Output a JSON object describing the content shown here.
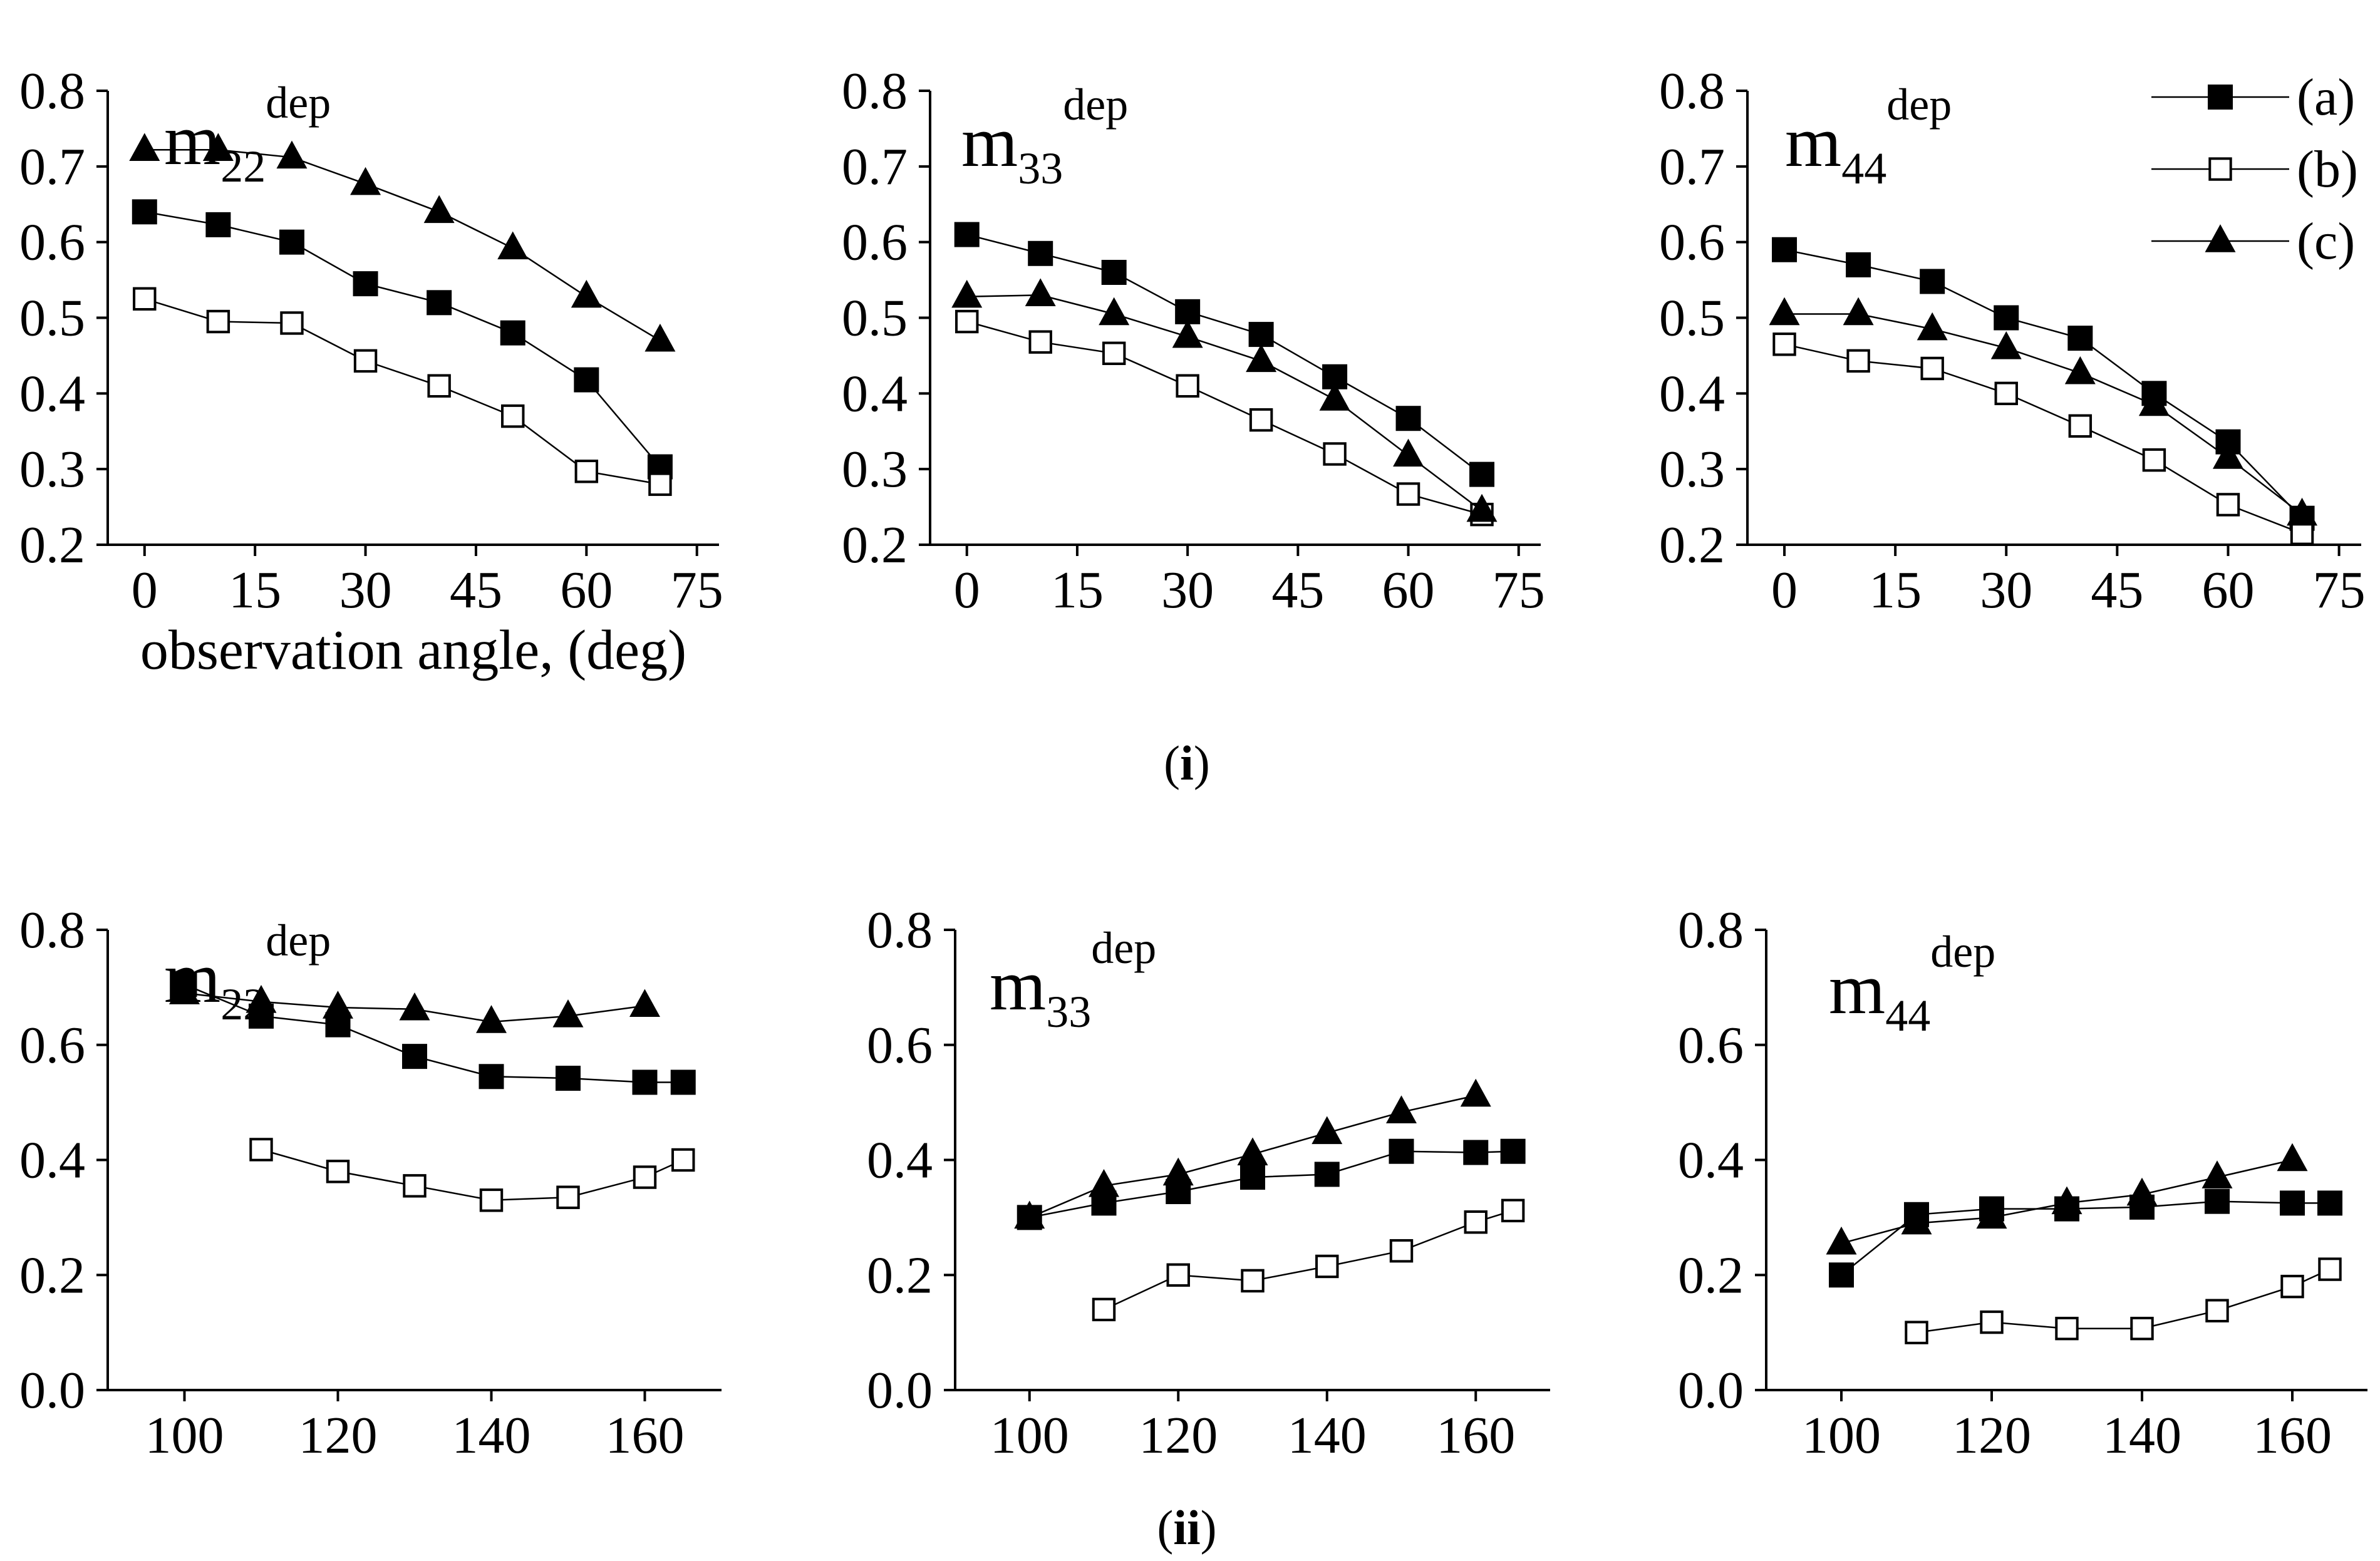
{
  "figure": {
    "captions": [
      {
        "pre": "(",
        "bold": "i",
        "post": ")"
      },
      {
        "pre": "(",
        "bold": "ii",
        "post": ")"
      }
    ]
  },
  "legend": {
    "entries": [
      {
        "label": "(a)",
        "series": "a"
      },
      {
        "label": "(b)",
        "series": "b"
      },
      {
        "label": "(c)",
        "series": "c"
      }
    ]
  },
  "chart_data": [
    {
      "type": "line",
      "panel": "(i)",
      "title": {
        "base": "m",
        "sub": "22",
        "sup": "dep"
      },
      "xlabel": "observation angle, (deg)",
      "ylabel": "",
      "xlim": [
        -5,
        78
      ],
      "ylim": [
        0.2,
        0.8
      ],
      "xticks": [
        0,
        15,
        30,
        45,
        60,
        75
      ],
      "yticks": [
        0.2,
        0.3,
        0.4,
        0.5,
        0.6,
        0.7,
        0.8
      ],
      "ytick_decimals": 1,
      "grid": false,
      "series": [
        {
          "name": "(a)",
          "marker": "filled-square",
          "x": [
            0,
            10,
            20,
            30,
            40,
            50,
            60,
            70
          ],
          "y": [
            0.64,
            0.623,
            0.6,
            0.545,
            0.52,
            0.48,
            0.418,
            0.303
          ]
        },
        {
          "name": "(b)",
          "marker": "open-square",
          "x": [
            0,
            10,
            20,
            30,
            40,
            50,
            60,
            70
          ],
          "y": [
            0.525,
            0.495,
            0.493,
            0.443,
            0.41,
            0.37,
            0.297,
            0.28
          ]
        },
        {
          "name": "(c)",
          "marker": "filled-triangle",
          "x": [
            0,
            10,
            20,
            30,
            40,
            50,
            60,
            70
          ],
          "y": [
            0.722,
            0.722,
            0.712,
            0.677,
            0.64,
            0.592,
            0.528,
            0.47
          ]
        }
      ]
    },
    {
      "type": "line",
      "panel": "(i)",
      "title": {
        "base": "m",
        "sub": "33",
        "sup": "dep"
      },
      "xlabel": "",
      "ylabel": "",
      "xlim": [
        -5,
        78
      ],
      "ylim": [
        0.2,
        0.8
      ],
      "xticks": [
        0,
        15,
        30,
        45,
        60,
        75
      ],
      "yticks": [
        0.2,
        0.3,
        0.4,
        0.5,
        0.6,
        0.7,
        0.8
      ],
      "ytick_decimals": 1,
      "grid": false,
      "series": [
        {
          "name": "(a)",
          "marker": "filled-square",
          "x": [
            0,
            10,
            20,
            30,
            40,
            50,
            60,
            70
          ],
          "y": [
            0.61,
            0.585,
            0.56,
            0.508,
            0.478,
            0.422,
            0.367,
            0.293
          ]
        },
        {
          "name": "(b)",
          "marker": "open-square",
          "x": [
            0,
            10,
            20,
            30,
            40,
            50,
            60,
            70
          ],
          "y": [
            0.495,
            0.468,
            0.453,
            0.41,
            0.365,
            0.32,
            0.267,
            0.24
          ]
        },
        {
          "name": "(c)",
          "marker": "filled-triangle",
          "x": [
            0,
            10,
            20,
            30,
            40,
            50,
            60,
            70
          ],
          "y": [
            0.528,
            0.53,
            0.505,
            0.475,
            0.443,
            0.392,
            0.318,
            0.245
          ]
        }
      ]
    },
    {
      "type": "line",
      "panel": "(i)",
      "title": {
        "base": "m",
        "sub": "44",
        "sup": "dep"
      },
      "xlabel": "",
      "ylabel": "",
      "xlim": [
        -5,
        78
      ],
      "ylim": [
        0.2,
        0.8
      ],
      "xticks": [
        0,
        15,
        30,
        45,
        60,
        75
      ],
      "yticks": [
        0.2,
        0.3,
        0.4,
        0.5,
        0.6,
        0.7,
        0.8
      ],
      "ytick_decimals": 1,
      "grid": false,
      "legend": "top-right",
      "series": [
        {
          "name": "(a)",
          "marker": "filled-square",
          "x": [
            0,
            10,
            20,
            30,
            40,
            50,
            60,
            70
          ],
          "y": [
            0.59,
            0.57,
            0.548,
            0.5,
            0.473,
            0.4,
            0.336,
            0.235
          ]
        },
        {
          "name": "(b)",
          "marker": "open-square",
          "x": [
            0,
            10,
            20,
            30,
            40,
            50,
            60,
            70
          ],
          "y": [
            0.465,
            0.443,
            0.433,
            0.4,
            0.357,
            0.312,
            0.253,
            0.215
          ]
        },
        {
          "name": "(c)",
          "marker": "filled-triangle",
          "x": [
            0,
            10,
            20,
            30,
            40,
            50,
            60,
            70
          ],
          "y": [
            0.505,
            0.505,
            0.485,
            0.46,
            0.427,
            0.385,
            0.315,
            0.24
          ]
        }
      ]
    },
    {
      "type": "line",
      "panel": "(ii)",
      "title": {
        "base": "m",
        "sub": "22",
        "sup": "dep"
      },
      "xlabel": "",
      "ylabel": "",
      "xlim": [
        90,
        170
      ],
      "ylim": [
        0.0,
        0.8
      ],
      "xticks": [
        100,
        120,
        140,
        160
      ],
      "yticks": [
        0.0,
        0.2,
        0.4,
        0.6,
        0.8
      ],
      "ytick_decimals": 1,
      "grid": false,
      "series": [
        {
          "name": "(a)",
          "marker": "filled-square",
          "x": [
            100,
            110,
            120,
            130,
            140,
            150,
            160,
            165
          ],
          "y": [
            0.705,
            0.65,
            0.635,
            0.58,
            0.545,
            0.542,
            0.535,
            0.535
          ]
        },
        {
          "name": "(b)",
          "marker": "open-square",
          "x": [
            110,
            120,
            130,
            140,
            150,
            160,
            165
          ],
          "y": [
            0.418,
            0.38,
            0.355,
            0.33,
            0.335,
            0.37,
            0.4
          ]
        },
        {
          "name": "(c)",
          "marker": "filled-triangle",
          "x": [
            100,
            110,
            120,
            130,
            140,
            150,
            160
          ],
          "y": [
            0.69,
            0.675,
            0.665,
            0.662,
            0.64,
            0.65,
            0.668
          ]
        }
      ]
    },
    {
      "type": "line",
      "panel": "(ii)",
      "title": {
        "base": "m",
        "sub": "33",
        "sup": "dep"
      },
      "xlabel": "",
      "ylabel": "",
      "xlim": [
        90,
        170
      ],
      "ylim": [
        0.0,
        0.8
      ],
      "xticks": [
        100,
        120,
        140,
        160
      ],
      "yticks": [
        0.0,
        0.2,
        0.4,
        0.6,
        0.8
      ],
      "ytick_decimals": 1,
      "grid": false,
      "series": [
        {
          "name": "(a)",
          "marker": "filled-square",
          "x": [
            100,
            110,
            120,
            130,
            140,
            150,
            160,
            165
          ],
          "y": [
            0.3,
            0.325,
            0.345,
            0.37,
            0.375,
            0.415,
            0.413,
            0.415
          ]
        },
        {
          "name": "(b)",
          "marker": "open-square",
          "x": [
            110,
            120,
            130,
            140,
            150,
            160,
            165
          ],
          "y": [
            0.14,
            0.2,
            0.19,
            0.215,
            0.242,
            0.292,
            0.312
          ]
        },
        {
          "name": "(c)",
          "marker": "filled-triangle",
          "x": [
            100,
            110,
            120,
            130,
            140,
            150,
            160
          ],
          "y": [
            0.3,
            0.355,
            0.375,
            0.41,
            0.447,
            0.483,
            0.512
          ]
        }
      ]
    },
    {
      "type": "line",
      "panel": "(ii)",
      "title": {
        "base": "m",
        "sub": "44",
        "sup": "dep"
      },
      "xlabel": "",
      "ylabel": "",
      "xlim": [
        90,
        170
      ],
      "ylim": [
        0.0,
        0.8
      ],
      "xticks": [
        100,
        120,
        140,
        160
      ],
      "yticks": [
        0.0,
        0.2,
        0.4,
        0.6,
        0.8
      ],
      "ytick_decimals": 1,
      "grid": false,
      "series": [
        {
          "name": "(a)",
          "marker": "filled-square",
          "x": [
            100,
            110,
            120,
            130,
            140,
            150,
            160,
            165
          ],
          "y": [
            0.2,
            0.305,
            0.315,
            0.315,
            0.318,
            0.328,
            0.325,
            0.325
          ]
        },
        {
          "name": "(b)",
          "marker": "open-square",
          "x": [
            110,
            120,
            130,
            140,
            150,
            160,
            165
          ],
          "y": [
            0.1,
            0.118,
            0.107,
            0.107,
            0.138,
            0.18,
            0.21
          ]
        },
        {
          "name": "(c)",
          "marker": "filled-triangle",
          "x": [
            100,
            110,
            120,
            130,
            140,
            150,
            160
          ],
          "y": [
            0.255,
            0.29,
            0.3,
            0.325,
            0.34,
            0.37,
            0.4
          ]
        }
      ]
    }
  ]
}
